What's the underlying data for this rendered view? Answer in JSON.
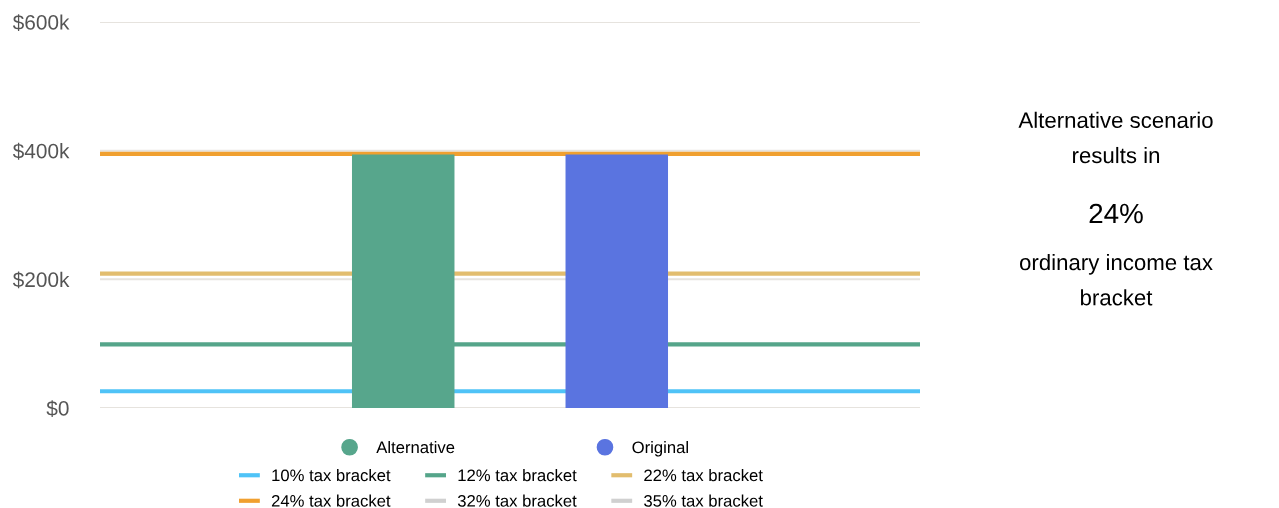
{
  "chart_data": {
    "type": "bar",
    "categories": [
      null,
      null
    ],
    "series": [
      {
        "name": "Alternative",
        "color": "#57a68c",
        "values": [
          394,
          null
        ]
      },
      {
        "name": "Original",
        "color": "#5a74e0",
        "values": [
          null,
          394
        ]
      }
    ],
    "ylim": [
      0,
      600
    ],
    "yticks": [
      {
        "value": 0,
        "label": "$0"
      },
      {
        "value": 200,
        "label": "$200k"
      },
      {
        "value": 400,
        "label": "$400k"
      },
      {
        "value": 600,
        "label": "$600k"
      }
    ],
    "ref_lines": [
      {
        "axis": "y",
        "value": 26,
        "label": "10% tax bracket",
        "color": "#4fc3f7"
      },
      {
        "axis": "y",
        "value": 99,
        "label": "12% tax bracket",
        "color": "#55a58a"
      },
      {
        "axis": "y",
        "value": 209,
        "label": "22% tax bracket",
        "color": "#e2bd6e"
      },
      {
        "axis": "y",
        "value": 395,
        "label": "24% tax bracket",
        "color": "#f0a030"
      },
      {
        "axis": "y",
        "value": null,
        "label": "32% tax bracket",
        "color": "#d0d0d0"
      },
      {
        "axis": "y",
        "value": null,
        "label": "35% tax bracket",
        "color": "#d0d0d0"
      }
    ],
    "annotations": [
      "Alternative scenario results in",
      "24%",
      "ordinary income tax bracket"
    ],
    "grid": "y",
    "legend": "bottom"
  }
}
